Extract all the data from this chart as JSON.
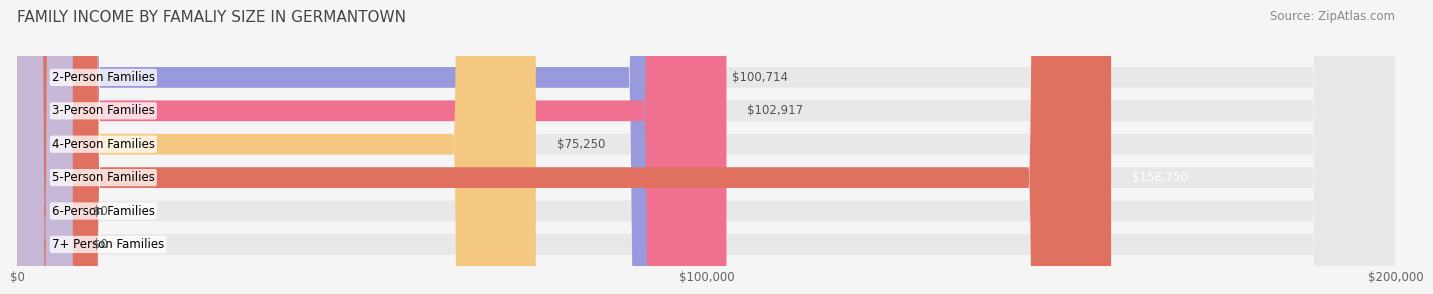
{
  "title": "FAMILY INCOME BY FAMALIY SIZE IN GERMANTOWN",
  "source": "Source: ZipAtlas.com",
  "categories": [
    "2-Person Families",
    "3-Person Families",
    "4-Person Families",
    "5-Person Families",
    "6-Person Families",
    "7+ Person Families"
  ],
  "values": [
    100714,
    102917,
    75250,
    158750,
    0,
    0
  ],
  "bar_colors": [
    "#9999dd",
    "#f07090",
    "#f5c882",
    "#e07060",
    "#aabbdd",
    "#c8b8d8"
  ],
  "label_colors": [
    "#555555",
    "#555555",
    "#555555",
    "#ffffff",
    "#555555",
    "#555555"
  ],
  "xlim": [
    0,
    200000
  ],
  "xticks": [
    0,
    100000,
    200000
  ],
  "xtick_labels": [
    "$0",
    "$100,000",
    "$200,000"
  ],
  "title_fontsize": 11,
  "source_fontsize": 8.5,
  "bar_label_fontsize": 8.5,
  "category_fontsize": 8.5,
  "background_color": "#f5f5f5",
  "bar_bg_color": "#e8e8e8"
}
